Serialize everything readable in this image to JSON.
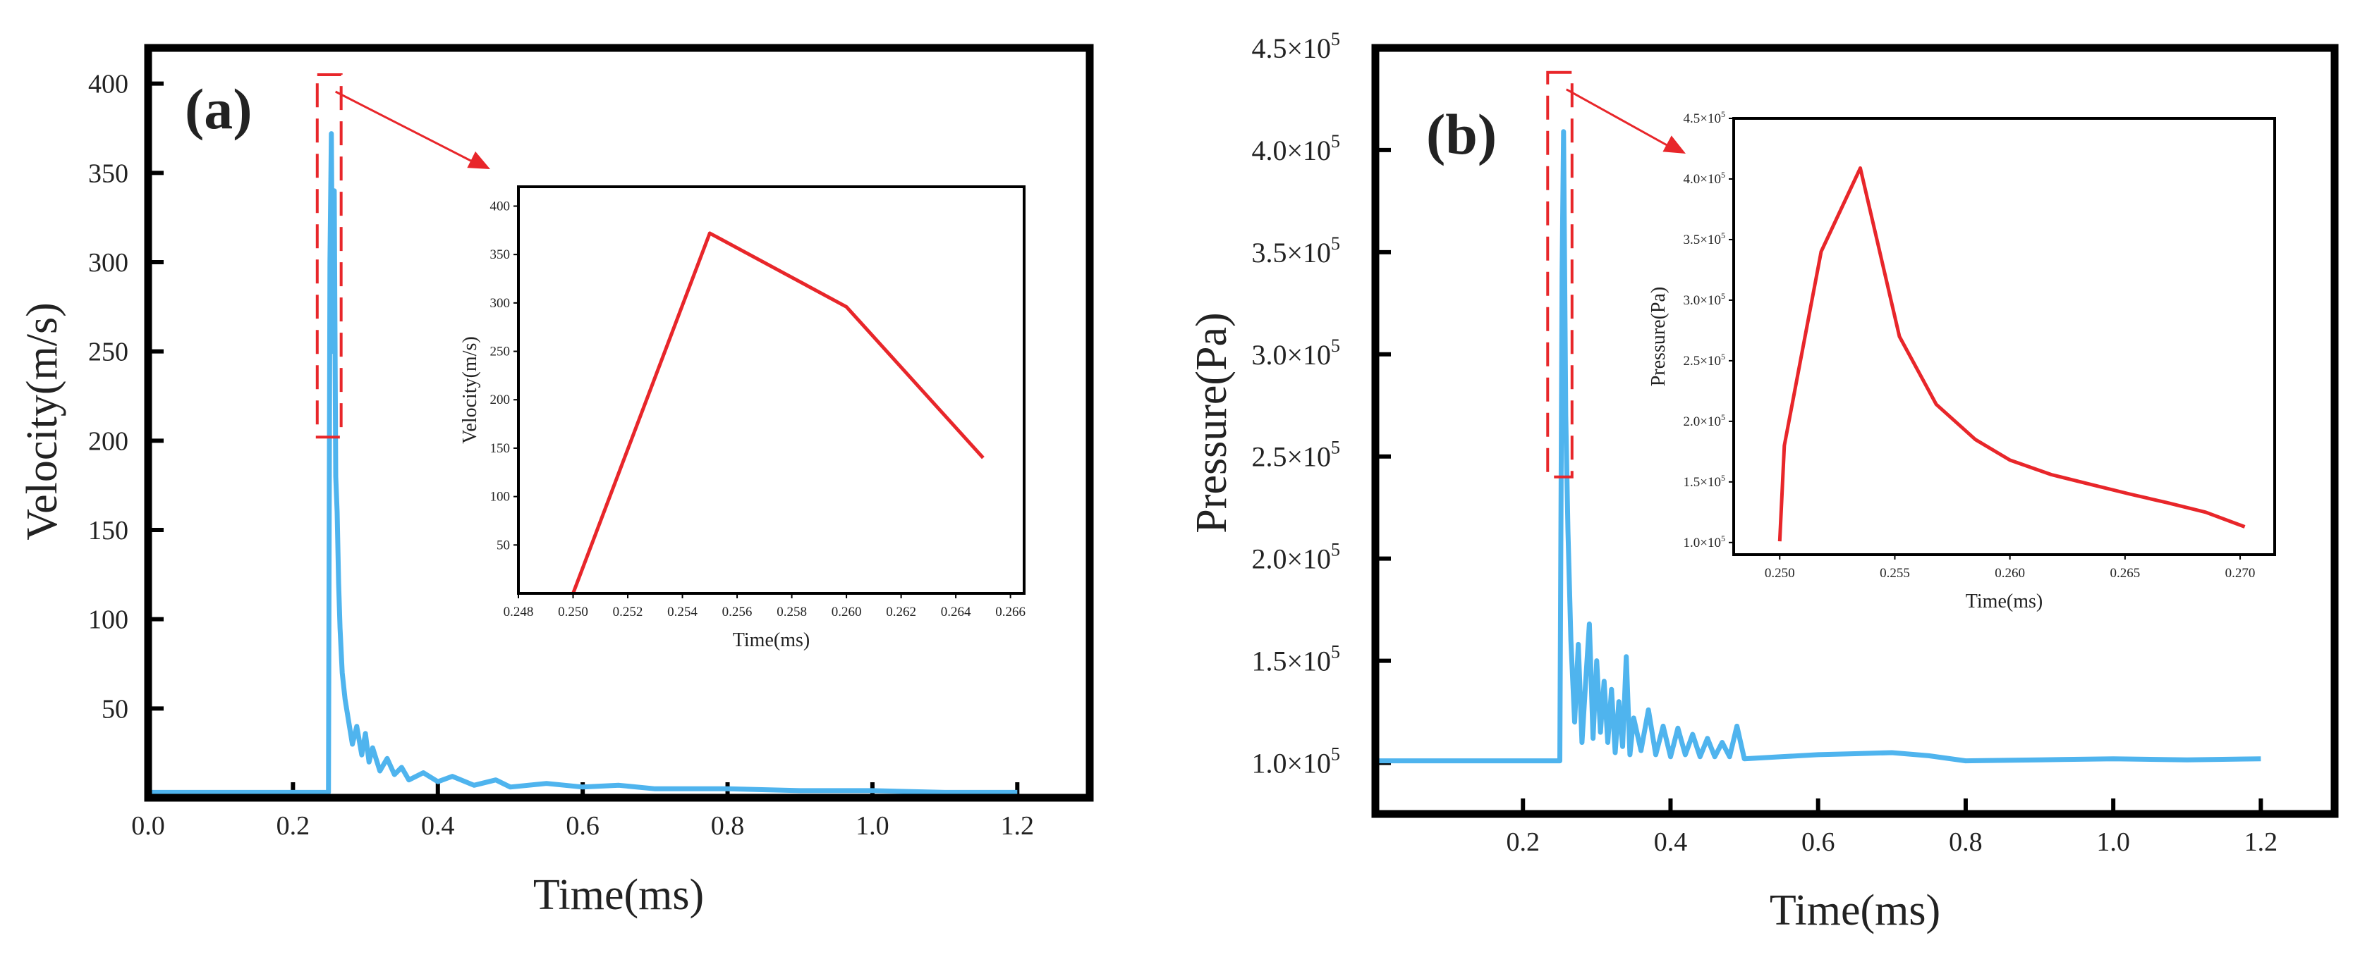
{
  "chart_data": [
    {
      "panel": "(a)",
      "type": "line",
      "xlabel": "Time(ms)",
      "ylabel": "Velocity(m/s)",
      "xlim": [
        0,
        1.3
      ],
      "ylim": [
        0,
        420
      ],
      "xticks": [
        0.0,
        0.2,
        0.4,
        0.6,
        0.8,
        1.0,
        1.2
      ],
      "xtick_labels": [
        "0.0",
        "0.2",
        "0.4",
        "0.6",
        "0.8",
        "1.0",
        "1.2"
      ],
      "yticks": [
        50,
        100,
        150,
        200,
        250,
        300,
        350,
        400
      ],
      "ytick_labels": [
        "50",
        "100",
        "150",
        "200",
        "250",
        "300",
        "350",
        "400"
      ],
      "series": [
        {
          "name": "Velocity",
          "color": "#4FB4EE",
          "x": [
            0,
            0.249,
            0.25,
            0.251,
            0.253,
            0.255,
            0.257,
            0.259,
            0.261,
            0.263,
            0.265,
            0.268,
            0.272,
            0.276,
            0.282,
            0.288,
            0.295,
            0.3,
            0.305,
            0.31,
            0.32,
            0.33,
            0.34,
            0.35,
            0.36,
            0.38,
            0.4,
            0.42,
            0.45,
            0.48,
            0.5,
            0.55,
            0.6,
            0.65,
            0.7,
            0.8,
            0.9,
            1.0,
            1.1,
            1.2
          ],
          "y": [
            3,
            3,
            150,
            300,
            372,
            250,
            340,
            180,
            160,
            120,
            95,
            70,
            55,
            45,
            30,
            40,
            24,
            36,
            20,
            28,
            15,
            22,
            13,
            17,
            10,
            14,
            9,
            12,
            7,
            10,
            6,
            8,
            6,
            7,
            5,
            5,
            4,
            4,
            3,
            3
          ]
        }
      ],
      "annotations": [
        "dashed zoom box around peak with arrow to inset"
      ],
      "inset": {
        "type": "line",
        "xlabel": "Time(ms)",
        "ylabel": "Velocity(m/s)",
        "xlim": [
          0.248,
          0.2665
        ],
        "ylim": [
          0,
          420
        ],
        "xticks": [
          0.248,
          0.25,
          0.252,
          0.254,
          0.256,
          0.258,
          0.26,
          0.262,
          0.264,
          0.266
        ],
        "xtick_labels": [
          "0.248",
          "0.250",
          "0.252",
          "0.254",
          "0.256",
          "0.258",
          "0.260",
          "0.262",
          "0.264",
          "0.266"
        ],
        "yticks": [
          50,
          100,
          150,
          200,
          250,
          300,
          350,
          400
        ],
        "ytick_labels": [
          "50",
          "100",
          "150",
          "200",
          "250",
          "300",
          "350",
          "400"
        ],
        "series": [
          {
            "name": "Velocity",
            "color": "#E8262A",
            "x": [
              0.25,
              0.255,
              0.26,
              0.265
            ],
            "y": [
              0,
              372,
              296,
              140
            ]
          }
        ]
      }
    },
    {
      "panel": "(b)",
      "type": "line",
      "xlabel": "Time(ms)",
      "ylabel": "Pressure(Pa)",
      "xlim": [
        0,
        1.3
      ],
      "ylim": [
        75000,
        450000
      ],
      "xticks": [
        0.2,
        0.4,
        0.6,
        0.8,
        1.0,
        1.2
      ],
      "xtick_labels": [
        "0.2",
        "0.4",
        "0.6",
        "0.8",
        "1.0",
        "1.2"
      ],
      "yticks": [
        100000,
        150000,
        200000,
        250000,
        300000,
        350000,
        400000,
        450000
      ],
      "ytick_mantissas": [
        "1.0",
        "1.5",
        "2.0",
        "2.5",
        "3.0",
        "3.5",
        "4.0",
        "4.5"
      ],
      "ytick_base": "×10",
      "ytick_exponent": "5",
      "series": [
        {
          "name": "Pressure",
          "color": "#4FB4EE",
          "x": [
            0,
            0.25,
            0.251,
            0.253,
            0.255,
            0.258,
            0.261,
            0.265,
            0.27,
            0.275,
            0.28,
            0.285,
            0.29,
            0.295,
            0.3,
            0.305,
            0.31,
            0.315,
            0.32,
            0.325,
            0.33,
            0.335,
            0.34,
            0.345,
            0.35,
            0.36,
            0.37,
            0.38,
            0.39,
            0.4,
            0.41,
            0.42,
            0.43,
            0.44,
            0.45,
            0.46,
            0.47,
            0.48,
            0.49,
            0.5,
            0.55,
            0.6,
            0.65,
            0.7,
            0.75,
            0.8,
            0.9,
            1.0,
            1.1,
            1.2
          ],
          "y": [
            101000,
            101000,
            180000,
            340000,
            409000,
            270000,
            214000,
            160000,
            120000,
            158000,
            110000,
            140000,
            168000,
            112000,
            150000,
            115000,
            140000,
            110000,
            136000,
            105000,
            130000,
            108000,
            152000,
            104000,
            122000,
            106000,
            126000,
            104000,
            118000,
            103000,
            117000,
            104000,
            114000,
            103000,
            112000,
            103000,
            110000,
            103000,
            118000,
            102000,
            103000,
            104000,
            104500,
            105000,
            103500,
            101000,
            101500,
            102000,
            101500,
            102000
          ]
        }
      ],
      "annotations": [
        "dashed zoom box around peak with arrow to inset"
      ],
      "inset": {
        "type": "line",
        "xlabel": "Time(ms)",
        "ylabel": "Pressure(Pa)",
        "xlim": [
          0.248,
          0.2715
        ],
        "ylim": [
          90000,
          450000
        ],
        "xticks": [
          0.25,
          0.255,
          0.26,
          0.265,
          0.27
        ],
        "xtick_labels": [
          "0.250",
          "0.255",
          "0.260",
          "0.265",
          "0.270"
        ],
        "yticks": [
          100000,
          150000,
          200000,
          250000,
          300000,
          350000,
          400000,
          450000
        ],
        "ytick_mantissas": [
          "1.0",
          "1.5",
          "2.0",
          "2.5",
          "3.0",
          "3.5",
          "4.0",
          "4.5"
        ],
        "ytick_base": "×10",
        "ytick_exponent": "5",
        "series": [
          {
            "name": "Pressure",
            "color": "#E8262A",
            "x": [
              0.25,
              0.2502,
              0.2518,
              0.2535,
              0.2552,
              0.2568,
              0.2585,
              0.26,
              0.2618,
              0.2635,
              0.2652,
              0.2668,
              0.2685,
              0.2702
            ],
            "y": [
              101000,
              180000,
              340000,
              409000,
              270000,
              214000,
              185000,
              168000,
              156000,
              148000,
              140000,
              133000,
              125000,
              113000
            ]
          }
        ]
      }
    }
  ]
}
